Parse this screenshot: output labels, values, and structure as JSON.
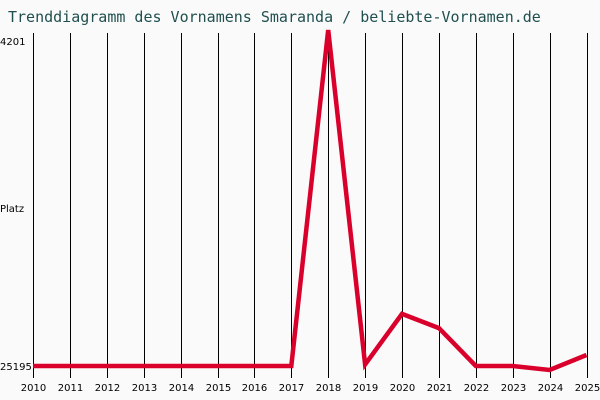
{
  "title": "Trenddiagramm des Vornamens Smaranda / beliebte-Vornamen.de",
  "chart_data": {
    "type": "line",
    "title": "Trenddiagramm des Vornamens Smaranda / beliebte-Vornamen.de",
    "xlabel": "",
    "ylabel": "Platz",
    "x": [
      "2010",
      "2011",
      "2012",
      "2013",
      "2014",
      "2015",
      "2016",
      "2017",
      "2018",
      "2019",
      "2020",
      "2021",
      "2022",
      "2023",
      "2024",
      "2025"
    ],
    "series": [
      {
        "name": "Smaranda",
        "color": "#d9002b",
        "values": [
          25195,
          25195,
          25195,
          25195,
          25195,
          25195,
          25195,
          25195,
          4201,
          25100,
          21900,
          22800,
          25195,
          25195,
          25450,
          24500
        ]
      }
    ],
    "y_tick_labels": [
      "4201",
      "Platz",
      "25195"
    ],
    "ylim": [
      25195,
      4201
    ],
    "y_inverted": true,
    "grid": {
      "vertical": true,
      "horizontal": false
    },
    "legend": "none"
  },
  "colors": {
    "line": "#d9002b",
    "grid": "#000000",
    "title": "#1f4f4f",
    "background": "#fafafa"
  }
}
